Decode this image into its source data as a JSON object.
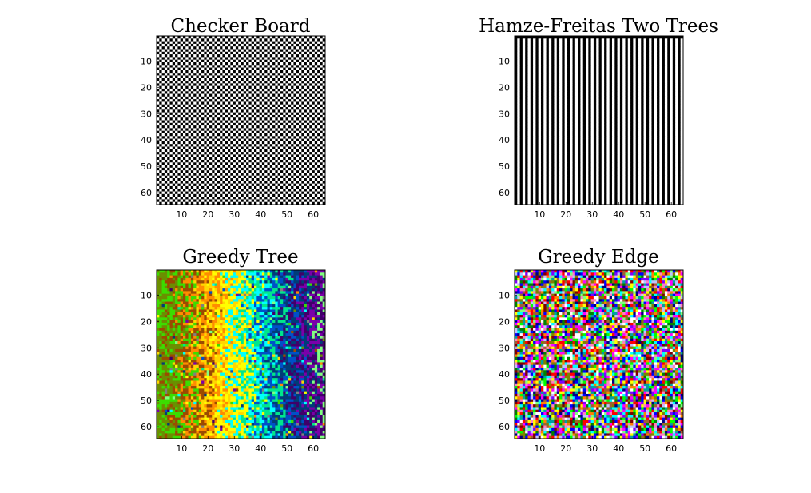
{
  "chart_data": [
    {
      "type": "heatmap",
      "title": "Checker Board",
      "pattern": "checkerboard",
      "grid_size": 64,
      "xlim": [
        0.5,
        64.5
      ],
      "ylim": [
        0.5,
        64.5
      ],
      "y_axis_reversed": true,
      "xticks": [
        10,
        20,
        30,
        40,
        50,
        60
      ],
      "yticks": [
        10,
        20,
        30,
        40,
        50,
        60
      ],
      "xtick_labels": [
        "10",
        "20",
        "30",
        "40",
        "50",
        "60"
      ],
      "ytick_labels": [
        "10",
        "20",
        "30",
        "40",
        "50",
        "60"
      ],
      "colormap": [
        "#000000",
        "#ffffff"
      ]
    },
    {
      "type": "heatmap",
      "title": "Hamze-Freitas Two Trees",
      "pattern": "stripes",
      "grid_size": 64,
      "xlim": [
        0.5,
        64.5
      ],
      "ylim": [
        0.5,
        64.5
      ],
      "y_axis_reversed": true,
      "xticks": [
        10,
        20,
        30,
        40,
        50,
        60
      ],
      "yticks": [
        10,
        20,
        30,
        40,
        50,
        60
      ],
      "xtick_labels": [
        "10",
        "20",
        "30",
        "40",
        "50",
        "60"
      ],
      "ytick_labels": [
        "10",
        "20",
        "30",
        "40",
        "50",
        "60"
      ],
      "colormap": [
        "#000000",
        "#ffffff"
      ]
    },
    {
      "type": "heatmap",
      "title": "Greedy Tree",
      "pattern": "random-hue-gradient",
      "grid_size": 64,
      "xlim": [
        0.5,
        64.5
      ],
      "ylim": [
        0.5,
        64.5
      ],
      "y_axis_reversed": true,
      "xticks": [
        10,
        20,
        30,
        40,
        50,
        60
      ],
      "yticks": [
        10,
        20,
        30,
        40,
        50,
        60
      ],
      "xtick_labels": [
        "10",
        "20",
        "30",
        "40",
        "50",
        "60"
      ],
      "ytick_labels": [
        "10",
        "20",
        "30",
        "40",
        "50",
        "60"
      ],
      "colormap": [
        "#6b8e00",
        "#3cdc00",
        "#9b4a00",
        "#ff8c00",
        "#ffd700",
        "#ffff00",
        "#00ffff",
        "#00e68c",
        "#0050c8",
        "#003c78",
        "#40006a",
        "#7a00aa",
        "#80ff80",
        "#808080"
      ]
    },
    {
      "type": "heatmap",
      "title": "Greedy Edge",
      "pattern": "random-color",
      "grid_size": 64,
      "xlim": [
        0.5,
        64.5
      ],
      "ylim": [
        0.5,
        64.5
      ],
      "y_axis_reversed": true,
      "xticks": [
        10,
        20,
        30,
        40,
        50,
        60
      ],
      "yticks": [
        10,
        20,
        30,
        40,
        50,
        60
      ],
      "xtick_labels": [
        "10",
        "20",
        "30",
        "40",
        "50",
        "60"
      ],
      "ytick_labels": [
        "10",
        "20",
        "30",
        "40",
        "50",
        "60"
      ],
      "colormap": [
        "#ff0000",
        "#00ff00",
        "#0000ff",
        "#ffff00",
        "#ff00ff",
        "#00ffff",
        "#ff8000",
        "#8000ff",
        "#008000",
        "#800000",
        "#ff80c0",
        "#80ff80",
        "#000080",
        "#ffffff",
        "#808000",
        "#00a0a0",
        "#a06030",
        "#c0c0ff"
      ]
    }
  ]
}
